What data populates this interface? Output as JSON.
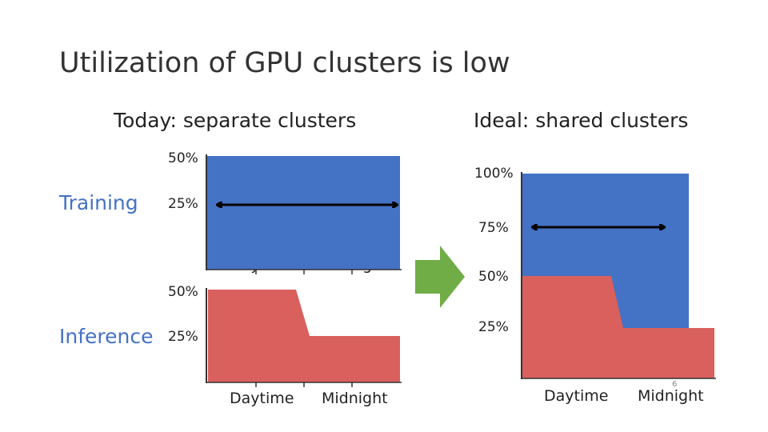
{
  "slide": {
    "title": "Utilization of GPU clusters is low",
    "left_heading": "Today: separate clusters",
    "right_heading": "Ideal: shared clusters",
    "training_label": "Training",
    "inference_label": "Inference",
    "slide_number": "6"
  },
  "colors": {
    "training": "#4472C4",
    "inference": "#D9605C",
    "arrow": "#70AD47",
    "label_blue": "#4472C4"
  },
  "chart_data": [
    {
      "type": "area",
      "name": "training-separate",
      "x_ticks": [
        "Daytime",
        "Midnight"
      ],
      "y_ticks": [
        "50%",
        "25%"
      ],
      "utilization_percent": [
        50,
        50
      ],
      "range_arrow_at_percent": 25
    },
    {
      "type": "area",
      "name": "inference-separate",
      "x_ticks": [
        "Daytime",
        "Midnight"
      ],
      "y_ticks": [
        "50%",
        "25%"
      ],
      "daytime_percent": 50,
      "midnight_percent": 25
    },
    {
      "type": "area",
      "name": "shared-cluster",
      "x_ticks": [
        "Daytime",
        "Midnight"
      ],
      "y_ticks": [
        "100%",
        "75%",
        "50%",
        "25%"
      ],
      "training_top_percent": 100,
      "inference_daytime_percent": 50,
      "inference_midnight_percent": 25,
      "range_arrow_at_percent": 75
    }
  ]
}
